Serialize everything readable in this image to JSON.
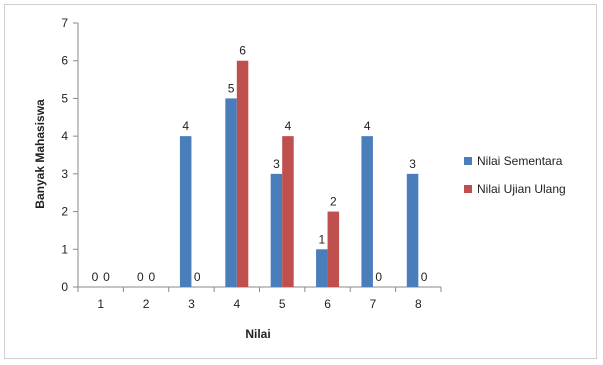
{
  "chart_data": {
    "type": "bar",
    "categories": [
      "1",
      "2",
      "3",
      "4",
      "5",
      "6",
      "7",
      "8"
    ],
    "series": [
      {
        "name": "Nilai Sementara",
        "values": [
          0,
          0,
          4,
          5,
          3,
          1,
          4,
          3
        ],
        "color": "#4a7ebb"
      },
      {
        "name": "Nilai Ujian Ulang",
        "values": [
          0,
          0,
          0,
          6,
          4,
          2,
          0,
          0
        ],
        "color": "#c0504d"
      }
    ],
    "xlabel": "Nilai",
    "ylabel": "Banyak Mahasiswa",
    "ylim": [
      0,
      7
    ],
    "yticks": [
      0,
      1,
      2,
      3,
      4,
      5,
      6,
      7
    ],
    "grid": false,
    "legend_position": "right",
    "data_labels": true
  }
}
